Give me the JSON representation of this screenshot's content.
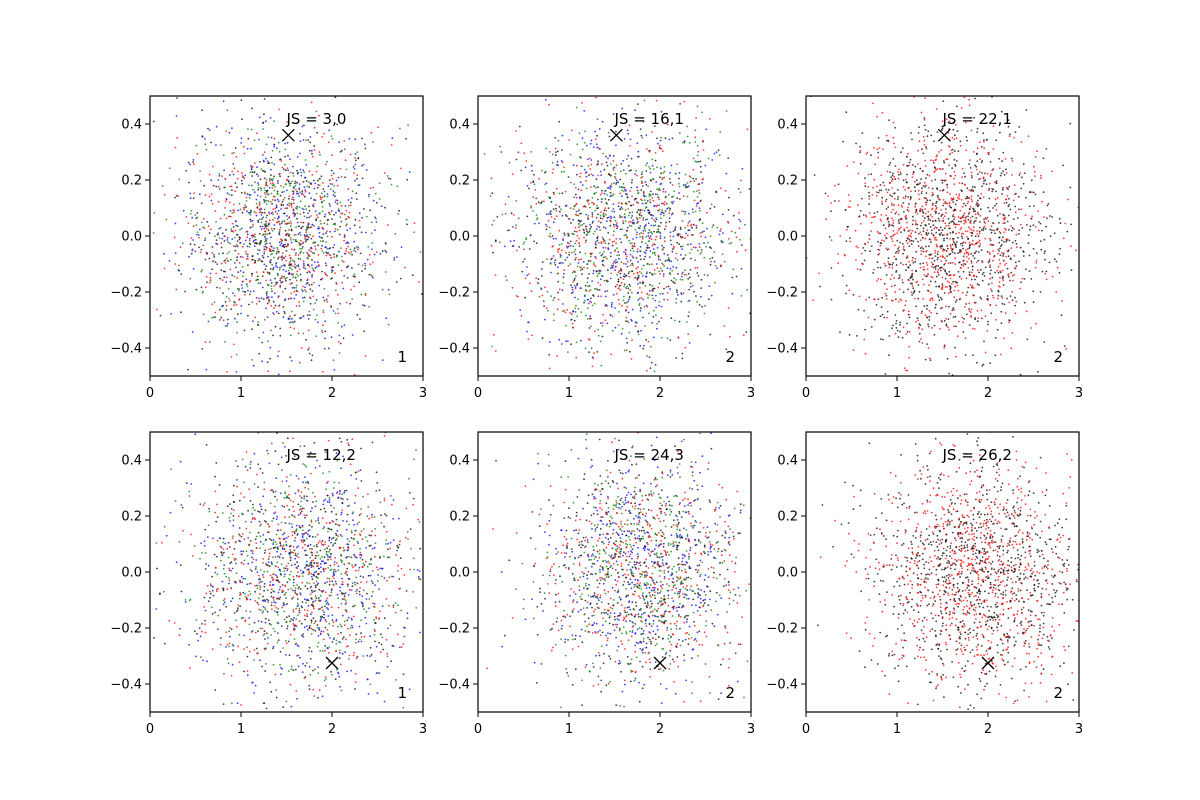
{
  "colors": {
    "black": "#000000",
    "red": "#ff0000",
    "green": "#008000",
    "blue": "#0000ff"
  },
  "chart_data": [
    {
      "type": "scatter",
      "title": "",
      "annotation": "JS = 3,0",
      "corner_label": "1",
      "marker": {
        "x": 1.52,
        "y": 0.36,
        "symbol": "x"
      },
      "series_colors": [
        "black",
        "red",
        "green",
        "blue"
      ],
      "point_center": [
        1.45,
        0.0
      ],
      "point_spread": [
        0.55,
        0.2
      ],
      "xlim": [
        0,
        3
      ],
      "ylim": [
        -0.5,
        0.5
      ],
      "xticks": [
        "0",
        "1",
        "2",
        "3"
      ],
      "yticks": [
        "−0.4",
        "−0.2",
        "0.0",
        "0.2",
        "0.4"
      ]
    },
    {
      "type": "scatter",
      "title": "",
      "annotation": "JS = 16,1",
      "corner_label": "2",
      "marker": {
        "x": 1.52,
        "y": 0.36,
        "symbol": "x"
      },
      "series_colors": [
        "black",
        "red",
        "green",
        "blue"
      ],
      "point_center": [
        1.6,
        0.0
      ],
      "point_spread": [
        0.6,
        0.2
      ],
      "xlim": [
        0,
        3
      ],
      "ylim": [
        -0.5,
        0.5
      ],
      "xticks": [
        "0",
        "1",
        "2",
        "3"
      ],
      "yticks": [
        "−0.4",
        "−0.2",
        "0.0",
        "0.2",
        "0.4"
      ]
    },
    {
      "type": "scatter",
      "title": "",
      "annotation": "JS = 22,1",
      "corner_label": "2",
      "marker": {
        "x": 1.52,
        "y": 0.36,
        "symbol": "x"
      },
      "series_colors": [
        "black",
        "red"
      ],
      "point_center": [
        1.55,
        0.0
      ],
      "point_spread": [
        0.55,
        0.2
      ],
      "xlim": [
        0,
        3
      ],
      "ylim": [
        -0.5,
        0.5
      ],
      "xticks": [
        "0",
        "1",
        "2",
        "3"
      ],
      "yticks": [
        "−0.4",
        "−0.2",
        "0.0",
        "0.2",
        "0.4"
      ]
    },
    {
      "type": "scatter",
      "title": "",
      "annotation": "JS = 12,2",
      "corner_label": "1",
      "marker": {
        "x": 2.0,
        "y": -0.325,
        "symbol": "x"
      },
      "series_colors": [
        "black",
        "red",
        "green",
        "blue"
      ],
      "point_center": [
        1.7,
        0.0
      ],
      "point_spread": [
        0.6,
        0.2
      ],
      "xlim": [
        0,
        3
      ],
      "ylim": [
        -0.5,
        0.5
      ],
      "xticks": [
        "0",
        "1",
        "2",
        "3"
      ],
      "yticks": [
        "−0.4",
        "−0.2",
        "0.0",
        "0.2",
        "0.4"
      ]
    },
    {
      "type": "scatter",
      "title": "",
      "annotation": "JS = 24,3",
      "corner_label": "2",
      "marker": {
        "x": 2.0,
        "y": -0.325,
        "symbol": "x"
      },
      "series_colors": [
        "black",
        "red",
        "green",
        "blue"
      ],
      "point_center": [
        1.8,
        0.0
      ],
      "point_spread": [
        0.55,
        0.2
      ],
      "xlim": [
        0,
        3
      ],
      "ylim": [
        -0.5,
        0.5
      ],
      "xticks": [
        "0",
        "1",
        "2",
        "3"
      ],
      "yticks": [
        "−0.4",
        "−0.2",
        "0.0",
        "0.2",
        "0.4"
      ]
    },
    {
      "type": "scatter",
      "title": "",
      "annotation": "JS = 26,2",
      "corner_label": "2",
      "marker": {
        "x": 2.0,
        "y": -0.325,
        "symbol": "x"
      },
      "series_colors": [
        "black",
        "red"
      ],
      "point_center": [
        1.85,
        0.0
      ],
      "point_spread": [
        0.55,
        0.2
      ],
      "xlim": [
        0,
        3
      ],
      "ylim": [
        -0.5,
        0.5
      ],
      "xticks": [
        "0",
        "1",
        "2",
        "3"
      ],
      "yticks": [
        "−0.4",
        "−0.2",
        "0.0",
        "0.2",
        "0.4"
      ]
    }
  ]
}
